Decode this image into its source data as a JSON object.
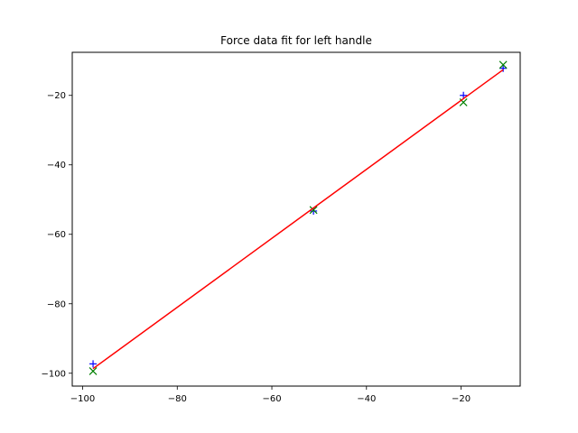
{
  "chart_data": {
    "type": "scatter",
    "title": "Force data fit for left handle",
    "xlabel": "",
    "ylabel": "",
    "xlim": [
      -102.2,
      -7.5
    ],
    "ylim": [
      -103.7,
      -7.6
    ],
    "x_ticks": [
      -100,
      -80,
      -60,
      -40,
      -20
    ],
    "y_ticks": [
      -100,
      -80,
      -60,
      -40,
      -20
    ],
    "x_tick_labels": [
      "−100",
      "−80",
      "−60",
      "−40",
      "−20"
    ],
    "y_tick_labels": [
      "−100",
      "−80",
      "−60",
      "−40",
      "−20"
    ],
    "grid": false,
    "series": [
      {
        "marker": "plus",
        "color": "#0000ff",
        "points": [
          {
            "x": -97.8,
            "y": -97.3
          },
          {
            "x": -51.2,
            "y": -53.3
          },
          {
            "x": -19.5,
            "y": -20.0
          },
          {
            "x": -11.1,
            "y": -12.2
          }
        ]
      },
      {
        "marker": "x",
        "color": "#008000",
        "points": [
          {
            "x": -97.8,
            "y": -99.4
          },
          {
            "x": -51.2,
            "y": -53.0
          },
          {
            "x": -19.5,
            "y": -22.0
          },
          {
            "x": -11.1,
            "y": -11.2
          }
        ]
      },
      {
        "marker": "line",
        "color": "#ff0000",
        "points": [
          {
            "x": -97.8,
            "y": -98.7
          },
          {
            "x": -11.1,
            "y": -12.6
          }
        ]
      }
    ]
  }
}
